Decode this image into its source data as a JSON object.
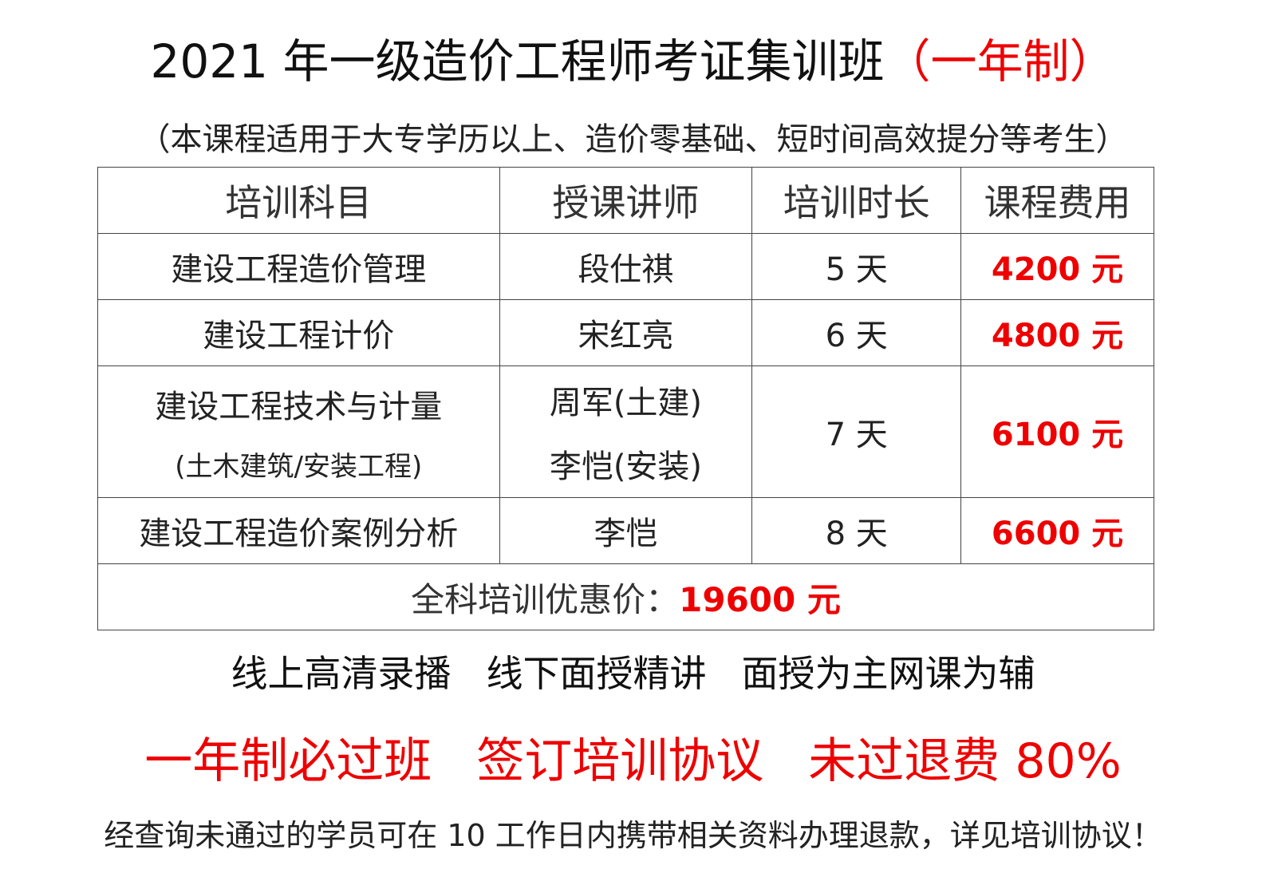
{
  "title": {
    "main": "2021 年一级造价工程师考证集训班",
    "highlight": "（一年制）"
  },
  "subtitle": "（本课程适用于大专学历以上、造价零基础、短时间高效提分等考生）",
  "table": {
    "headers": [
      "培训科目",
      "授课讲师",
      "培训时长",
      "课程费用"
    ],
    "rows": [
      {
        "subject": "建设工程造价管理",
        "subject_note": "",
        "teacher": "段仕祺",
        "teacher_2": "",
        "duration": "5 天",
        "fee": "4200 元"
      },
      {
        "subject": "建设工程计价",
        "subject_note": "",
        "teacher": "宋红亮",
        "teacher_2": "",
        "duration": "6 天",
        "fee": "4800 元"
      },
      {
        "subject": "建设工程技术与计量",
        "subject_note": "(土木建筑/安装工程)",
        "teacher": "周军(土建)",
        "teacher_2": "李恺(安装)",
        "duration": "7 天",
        "fee": "6100 元"
      },
      {
        "subject": "建设工程造价案例分析",
        "subject_note": "",
        "teacher": "李恺",
        "teacher_2": "",
        "duration": "8 天",
        "fee": "6600 元"
      }
    ],
    "total_label": "全科培训优惠价：",
    "total_price": "19600 元"
  },
  "features": [
    "线上高清录播",
    "线下面授精讲",
    "面授为主网课为辅"
  ],
  "promises": [
    "一年制必过班",
    "签订培训协议",
    "未过退费 80%"
  ],
  "note": "经查询未通过的学员可在 10 工作日内携带相关资料办理退款，详见培训协议！",
  "colors": {
    "accent": "#ee0000",
    "text": "#222222"
  }
}
